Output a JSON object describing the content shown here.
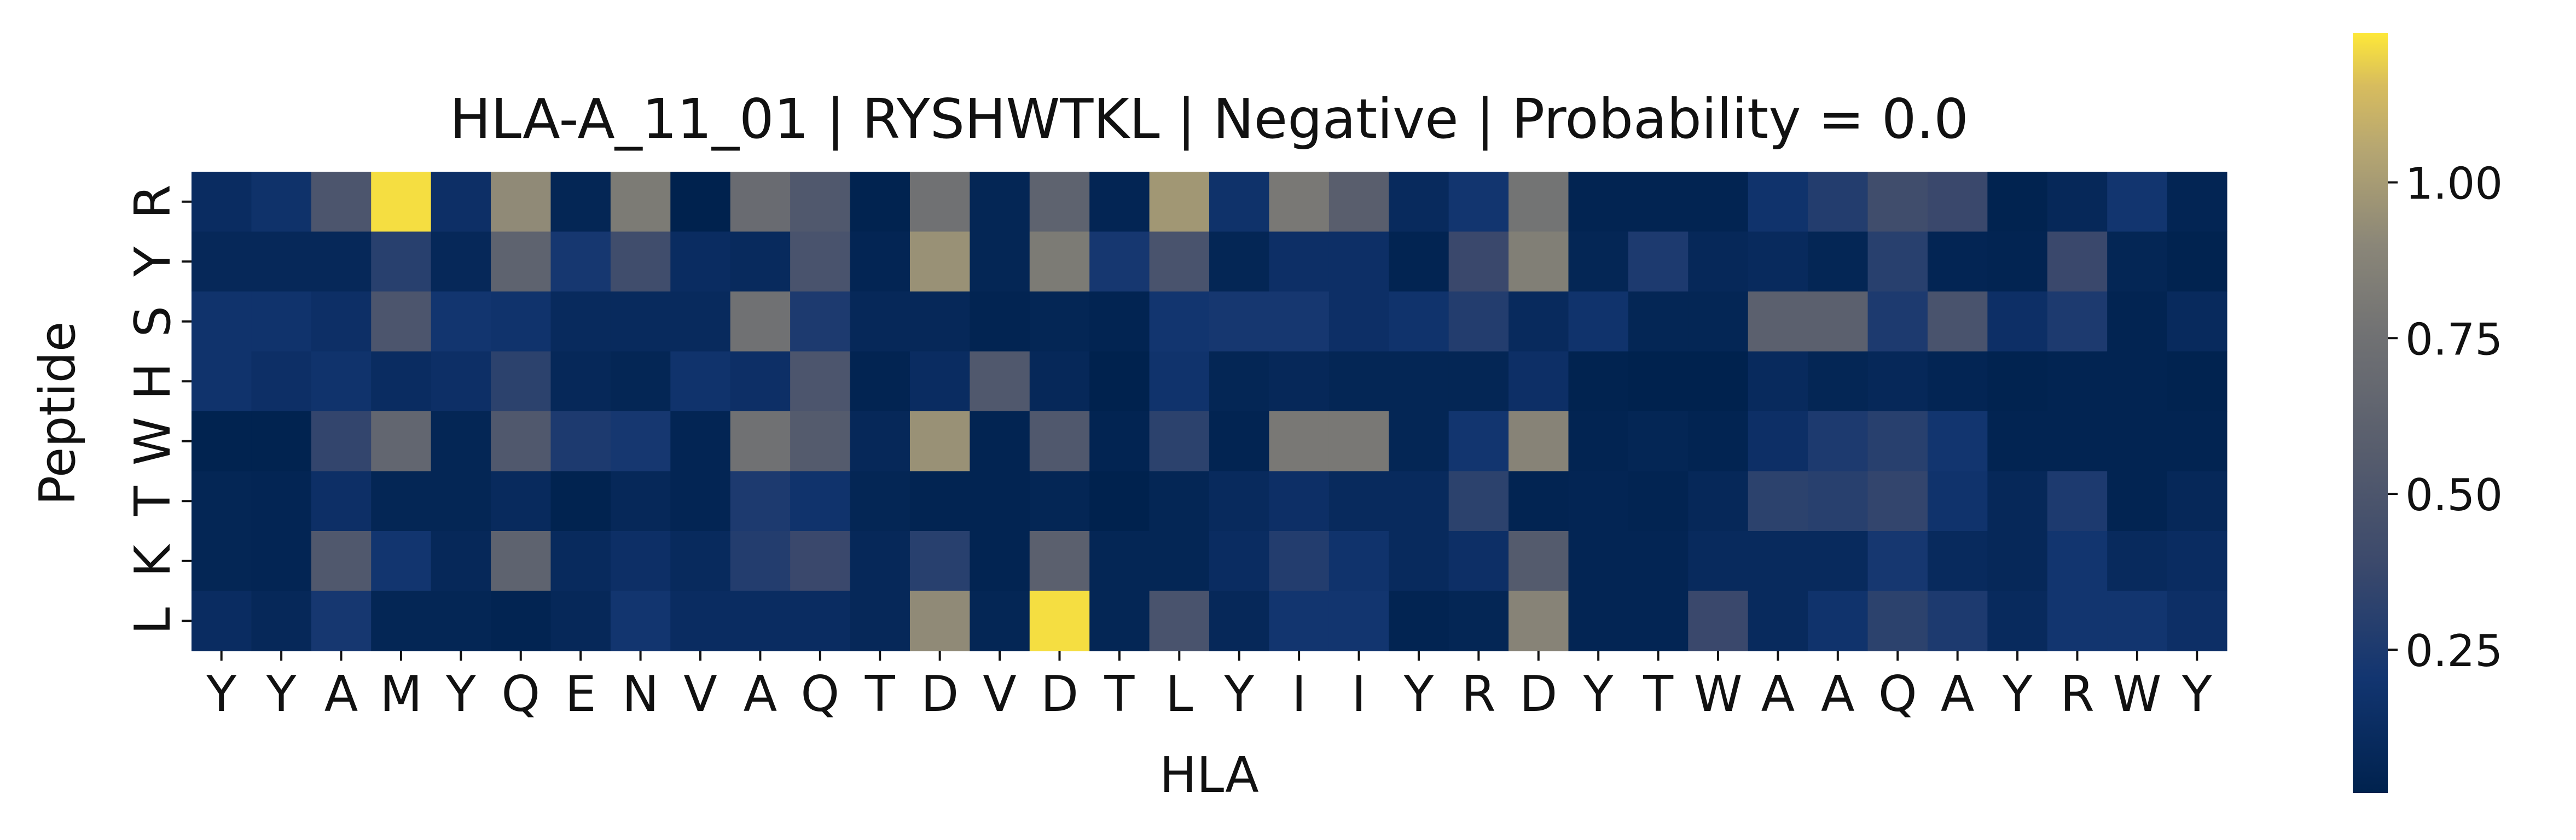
{
  "chart_data": {
    "type": "heatmap",
    "title": "HLA-A_11_01 | RYSHWTKL | Negative | Probability = 0.0",
    "xlabel": "HLA",
    "ylabel": "Peptide",
    "x_categories": [
      "Y",
      "Y",
      "A",
      "M",
      "Y",
      "Q",
      "E",
      "N",
      "V",
      "A",
      "Q",
      "T",
      "D",
      "V",
      "D",
      "T",
      "L",
      "Y",
      "I",
      "I",
      "Y",
      "R",
      "D",
      "Y",
      "T",
      "W",
      "A",
      "A",
      "Q",
      "A",
      "Y",
      "R",
      "W",
      "Y"
    ],
    "y_categories": [
      "R",
      "Y",
      "S",
      "H",
      "W",
      "T",
      "K",
      "L"
    ],
    "values": [
      [
        0.12,
        0.17,
        0.5,
        1.22,
        0.15,
        0.92,
        0.06,
        0.82,
        0.02,
        0.7,
        0.52,
        0.03,
        0.75,
        0.06,
        0.62,
        0.05,
        0.98,
        0.17,
        0.8,
        0.58,
        0.1,
        0.2,
        0.77,
        0.04,
        0.04,
        0.04,
        0.18,
        0.28,
        0.42,
        0.38,
        0.03,
        0.08,
        0.2,
        0.05
      ],
      [
        0.08,
        0.08,
        0.08,
        0.3,
        0.08,
        0.62,
        0.22,
        0.42,
        0.12,
        0.1,
        0.48,
        0.05,
        0.95,
        0.06,
        0.82,
        0.22,
        0.48,
        0.06,
        0.15,
        0.15,
        0.04,
        0.38,
        0.85,
        0.06,
        0.25,
        0.08,
        0.1,
        0.06,
        0.3,
        0.05,
        0.04,
        0.38,
        0.06,
        0.03
      ],
      [
        0.18,
        0.18,
        0.15,
        0.5,
        0.2,
        0.18,
        0.1,
        0.1,
        0.1,
        0.75,
        0.25,
        0.08,
        0.08,
        0.04,
        0.06,
        0.04,
        0.2,
        0.22,
        0.22,
        0.15,
        0.18,
        0.28,
        0.1,
        0.18,
        0.06,
        0.06,
        0.6,
        0.6,
        0.25,
        0.48,
        0.15,
        0.25,
        0.04,
        0.1
      ],
      [
        0.18,
        0.15,
        0.18,
        0.12,
        0.15,
        0.32,
        0.08,
        0.06,
        0.18,
        0.15,
        0.5,
        0.04,
        0.12,
        0.52,
        0.08,
        0.02,
        0.18,
        0.06,
        0.08,
        0.06,
        0.06,
        0.06,
        0.15,
        0.03,
        0.01,
        0.02,
        0.1,
        0.06,
        0.08,
        0.05,
        0.03,
        0.04,
        0.04,
        0.03
      ],
      [
        0.03,
        0.03,
        0.35,
        0.65,
        0.06,
        0.52,
        0.25,
        0.22,
        0.05,
        0.75,
        0.55,
        0.08,
        0.95,
        0.04,
        0.52,
        0.04,
        0.32,
        0.04,
        0.8,
        0.8,
        0.06,
        0.2,
        0.88,
        0.04,
        0.06,
        0.04,
        0.15,
        0.25,
        0.3,
        0.2,
        0.04,
        0.04,
        0.04,
        0.04
      ],
      [
        0.06,
        0.05,
        0.15,
        0.06,
        0.06,
        0.1,
        0.03,
        0.08,
        0.05,
        0.25,
        0.18,
        0.06,
        0.04,
        0.04,
        0.06,
        0.02,
        0.06,
        0.1,
        0.15,
        0.1,
        0.1,
        0.32,
        0.04,
        0.05,
        0.04,
        0.08,
        0.32,
        0.3,
        0.35,
        0.18,
        0.08,
        0.25,
        0.04,
        0.08
      ],
      [
        0.06,
        0.05,
        0.52,
        0.2,
        0.08,
        0.62,
        0.1,
        0.15,
        0.1,
        0.28,
        0.38,
        0.08,
        0.3,
        0.04,
        0.6,
        0.06,
        0.06,
        0.12,
        0.28,
        0.18,
        0.1,
        0.15,
        0.55,
        0.05,
        0.05,
        0.1,
        0.1,
        0.1,
        0.22,
        0.1,
        0.08,
        0.2,
        0.1,
        0.12
      ],
      [
        0.12,
        0.08,
        0.22,
        0.06,
        0.06,
        0.04,
        0.08,
        0.2,
        0.12,
        0.12,
        0.12,
        0.08,
        0.92,
        0.06,
        1.22,
        0.06,
        0.48,
        0.08,
        0.2,
        0.2,
        0.04,
        0.06,
        0.88,
        0.05,
        0.05,
        0.38,
        0.1,
        0.18,
        0.32,
        0.25,
        0.1,
        0.2,
        0.2,
        0.15
      ]
    ],
    "colorbar": {
      "colormap": "cividis",
      "range": [
        0.02,
        1.24
      ],
      "ticks": [
        0.25,
        0.5,
        0.75,
        1.0
      ],
      "tick_labels": [
        "0.25",
        "0.50",
        "0.75",
        "1.00"
      ]
    },
    "grid": false,
    "legend": "colorbar-right"
  }
}
